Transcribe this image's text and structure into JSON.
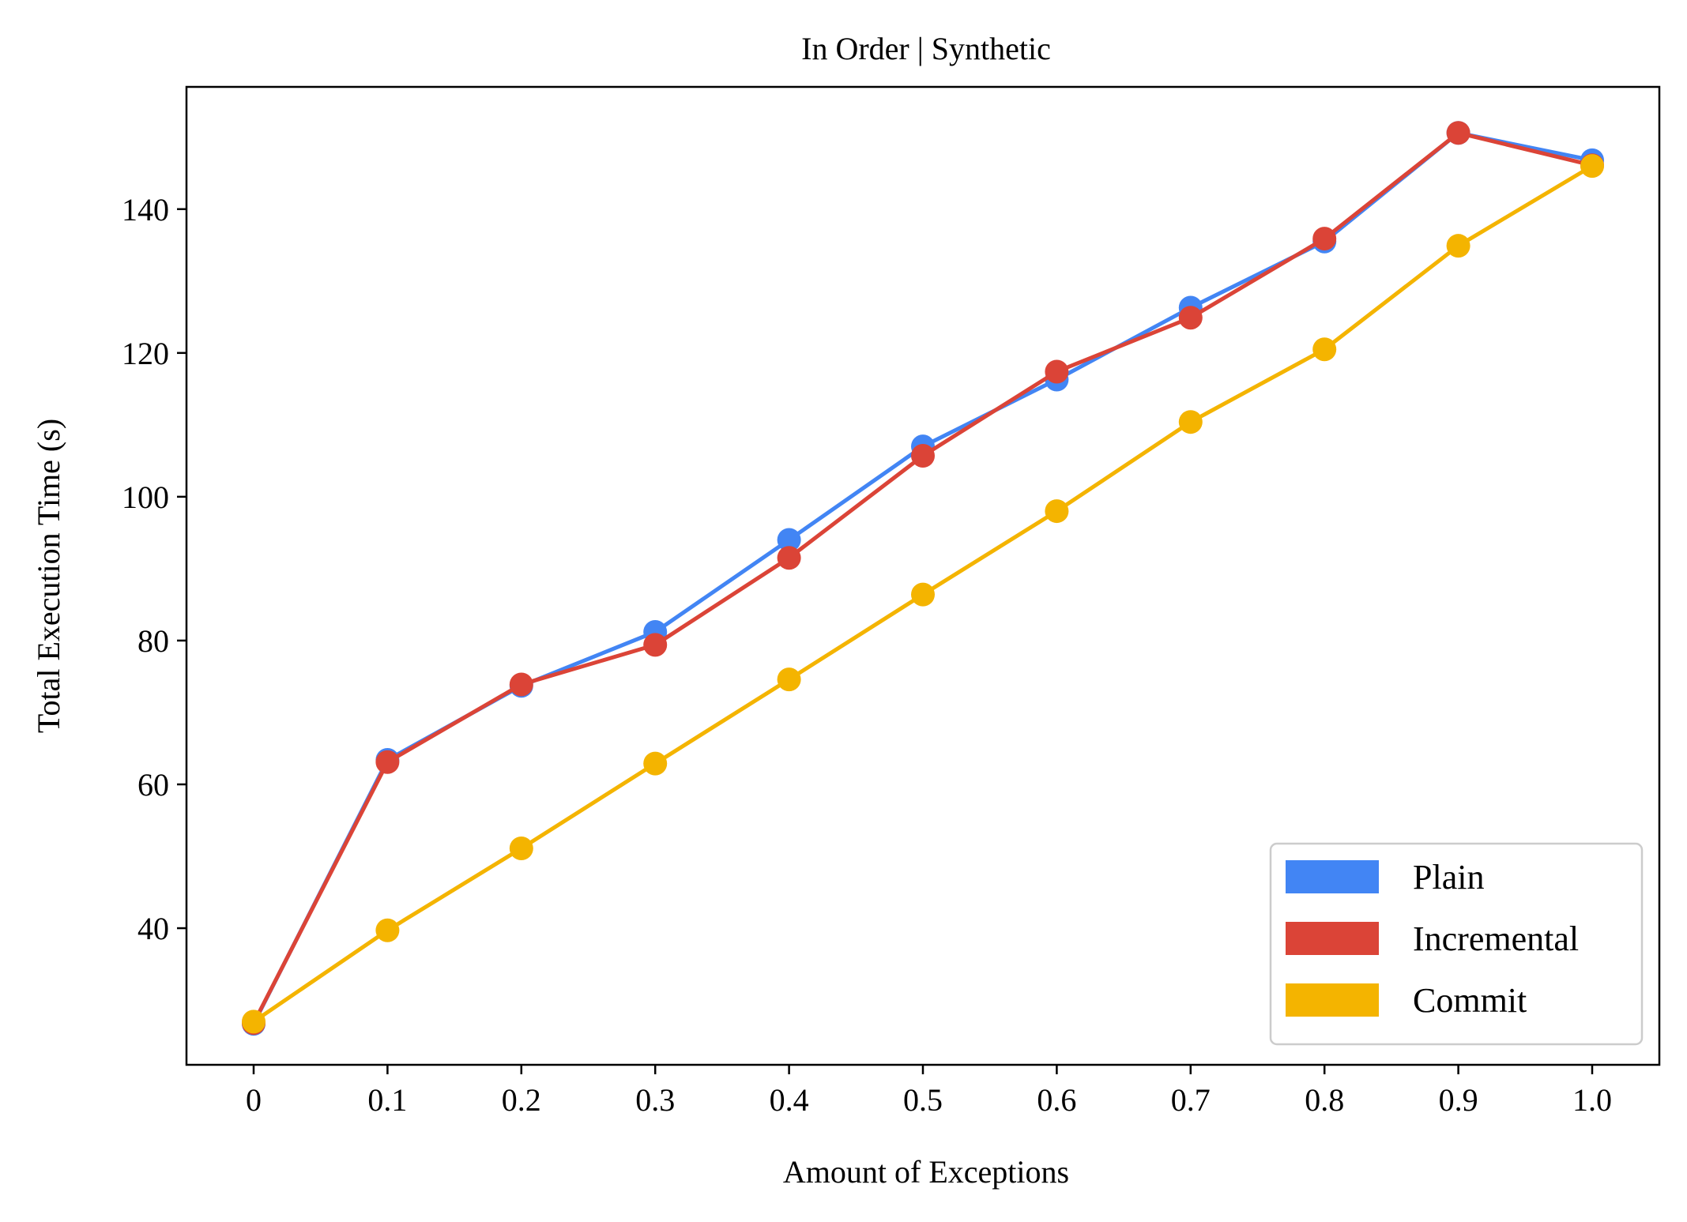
{
  "chart_data": {
    "type": "line",
    "title": "In Order | Synthetic",
    "xlabel": "Amount of Exceptions",
    "ylabel": "Total Execution Time (s)",
    "categories": [
      "0",
      "0.1",
      "0.2",
      "0.3",
      "0.4",
      "0.5",
      "0.6",
      "0.7",
      "0.8",
      "0.9",
      "1.0"
    ],
    "ylim": [
      21,
      157
    ],
    "yticks": [
      40,
      60,
      80,
      100,
      120,
      140
    ],
    "grid": false,
    "legend_position": "lower-right",
    "series": [
      {
        "name": "Plain",
        "color": "#4285f4",
        "values": [
          26.7,
          63.4,
          73.7,
          81.2,
          94.0,
          107.0,
          116.3,
          126.3,
          135.5,
          150.6,
          146.8
        ]
      },
      {
        "name": "Incremental",
        "color": "#db4437",
        "values": [
          26.8,
          63.1,
          73.9,
          79.4,
          91.5,
          105.7,
          117.4,
          124.9,
          135.9,
          150.6,
          146.1
        ]
      },
      {
        "name": "Commit",
        "color": "#f4b400",
        "values": [
          27.0,
          39.7,
          51.1,
          62.9,
          74.6,
          86.4,
          98.0,
          110.4,
          120.5,
          134.9,
          146.0
        ]
      }
    ]
  }
}
